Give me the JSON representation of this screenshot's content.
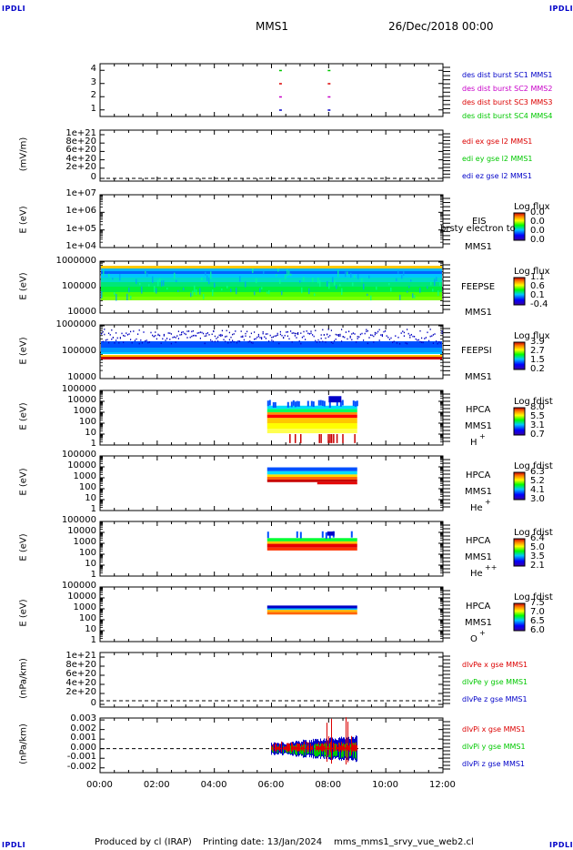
{
  "header": {
    "corner_label": "IPDLI",
    "spacecraft": "MMS1",
    "datetime": "26/Dec/2018 00:00"
  },
  "footer": {
    "produced_by": "Produced by cl (IRAP)",
    "printing_date": "Printing date: 13/Jan/2024",
    "file": "mms_mms1_srvy_vue_web2.cl"
  },
  "colors": {
    "mms1": "#0000c8",
    "mms2": "#c800c8",
    "mms3": "#dc0000",
    "mms4": "#00c800",
    "x_component": "#dc0000",
    "y_component": "#00c800",
    "z_component": "#0000c8"
  },
  "chart_data": [
    {
      "type": "scatter",
      "panel": "burst",
      "ylim": [
        0.5,
        4.5
      ],
      "y_ticks": [
        "4",
        "3",
        "2",
        "1"
      ],
      "legend": [
        "des dist burst SC1 MMS1",
        "des dist burst SC2 MMS2",
        "des dist burst SC3 MMS3",
        "des dist burst SC4 MMS4"
      ],
      "series": [
        {
          "name": "des dist burst SC1 MMS1",
          "level": 1,
          "x_hours": [
            6.3,
            8.0
          ]
        },
        {
          "name": "des dist burst SC2 MMS2",
          "level": 2,
          "x_hours": [
            6.3,
            8.0
          ]
        },
        {
          "name": "des dist burst SC3 MMS3",
          "level": 3,
          "x_hours": [
            6.3,
            8.0
          ]
        },
        {
          "name": "des dist burst SC4 MMS4",
          "level": 4,
          "x_hours": [
            6.3,
            8.0
          ]
        }
      ]
    },
    {
      "type": "line",
      "panel": "edi_e",
      "ylabel": "(mV/m)",
      "y_ticks": [
        "1e+21",
        "8e+20",
        "6e+20",
        "4e+20",
        "2e+20",
        "0"
      ],
      "legend": [
        "edi ex gse l2 MMS1",
        "edi ey gse l2 MMS1",
        "edi ez gse l2 MMS1"
      ],
      "zero_line": true
    },
    {
      "type": "heatmap",
      "panel": "eis",
      "ylabel": "E (eV)",
      "y_scale": "log",
      "y_ticks": [
        "1e+07",
        "1e+06",
        "1e+05",
        "1e+04"
      ],
      "instrument": [
        "EIS",
        "MMS1"
      ],
      "overlay_text": "brsty electron to",
      "colorbar": {
        "title": "Log flux",
        "ticks": [
          "0.0",
          "0.0",
          "0.0",
          "0.0"
        ]
      }
    },
    {
      "type": "heatmap",
      "panel": "feeps_electron",
      "ylabel": "E (eV)",
      "y_scale": "log",
      "y_ticks": [
        "1000000",
        "100000",
        "10000"
      ],
      "instrument": [
        "FEEPSE",
        "MMS1"
      ],
      "x_coverage_hours": [
        0,
        12
      ],
      "colorbar": {
        "title": "Log flux",
        "ticks": [
          "1.1",
          "0.6",
          "0.1",
          "-0.4"
        ]
      }
    },
    {
      "type": "heatmap",
      "panel": "feeps_ion",
      "ylabel": "E (eV)",
      "y_scale": "log",
      "y_ticks": [
        "1000000",
        "100000",
        "10000"
      ],
      "instrument": [
        "FEEPSI",
        "MMS1"
      ],
      "x_coverage_hours": [
        0,
        12
      ],
      "colorbar": {
        "title": "Log flux",
        "ticks": [
          "3.9",
          "2.7",
          "1.5",
          "0.2"
        ]
      }
    },
    {
      "type": "heatmap",
      "panel": "hpca_h",
      "ylabel": "E (eV)",
      "y_scale": "log",
      "y_ticks": [
        "100000",
        "10000",
        "1000",
        "100",
        "10",
        "1"
      ],
      "instrument": [
        "HPCA",
        "MMS1",
        "H"
      ],
      "species_charge": "+",
      "x_coverage_hours": [
        5.85,
        9.0
      ],
      "colorbar": {
        "title": "Log fdist",
        "ticks": [
          "8.0",
          "5.5",
          "3.1",
          "0.7"
        ]
      }
    },
    {
      "type": "heatmap",
      "panel": "hpca_he1",
      "ylabel": "E (eV)",
      "y_scale": "log",
      "y_ticks": [
        "100000",
        "10000",
        "1000",
        "100",
        "10",
        "1"
      ],
      "instrument": [
        "HPCA",
        "MMS1",
        "He"
      ],
      "species_charge": "+",
      "x_coverage_hours": [
        5.85,
        9.0
      ],
      "colorbar": {
        "title": "Log fdist",
        "ticks": [
          "6.3",
          "5.2",
          "4.1",
          "3.0"
        ]
      }
    },
    {
      "type": "heatmap",
      "panel": "hpca_he2",
      "ylabel": "E (eV)",
      "y_scale": "log",
      "y_ticks": [
        "100000",
        "10000",
        "1000",
        "100",
        "10",
        "1"
      ],
      "instrument": [
        "HPCA",
        "MMS1",
        "He"
      ],
      "species_charge": "++",
      "x_coverage_hours": [
        5.85,
        9.0
      ],
      "colorbar": {
        "title": "Log fdist",
        "ticks": [
          "6.4",
          "5.0",
          "3.5",
          "2.1"
        ]
      }
    },
    {
      "type": "heatmap",
      "panel": "hpca_o",
      "ylabel": "E (eV)",
      "y_scale": "log",
      "y_ticks": [
        "100000",
        "10000",
        "1000",
        "100",
        "10",
        "1"
      ],
      "instrument": [
        "HPCA",
        "MMS1",
        "O"
      ],
      "species_charge": "+",
      "x_coverage_hours": [
        5.85,
        9.0
      ],
      "colorbar": {
        "title": "Log fdist",
        "ticks": [
          "7.5",
          "7.0",
          "6.5",
          "6.0"
        ]
      }
    },
    {
      "type": "line",
      "panel": "divpe",
      "ylabel": "(nPa/km)",
      "y_ticks": [
        "1e+21",
        "8e+20",
        "6e+20",
        "4e+20",
        "2e+20",
        "0"
      ],
      "legend": [
        "dIvPe x gse MMS1",
        "dIvPe y gse MMS1",
        "dIvPe z gse MMS1"
      ],
      "zero_line": true
    },
    {
      "type": "line",
      "panel": "divpi",
      "ylabel": "(nPa/km)",
      "ylim": [
        -0.0025,
        0.0032
      ],
      "y_ticks": [
        "0.003",
        "0.002",
        "0.001",
        "0.000",
        "-0.001",
        "-0.002"
      ],
      "legend": [
        "dIvPi x gse MMS1",
        "dIvPi y gse MMS1",
        "dIvPi z gse MMS1"
      ],
      "zero_line": true,
      "x_coverage_hours": [
        6.0,
        9.0
      ]
    }
  ],
  "x_axis": {
    "xlim_hours": [
      0,
      12
    ],
    "tick_labels": [
      "00:00",
      "02:00",
      "04:00",
      "06:00",
      "08:00",
      "10:00",
      "12:00"
    ]
  }
}
